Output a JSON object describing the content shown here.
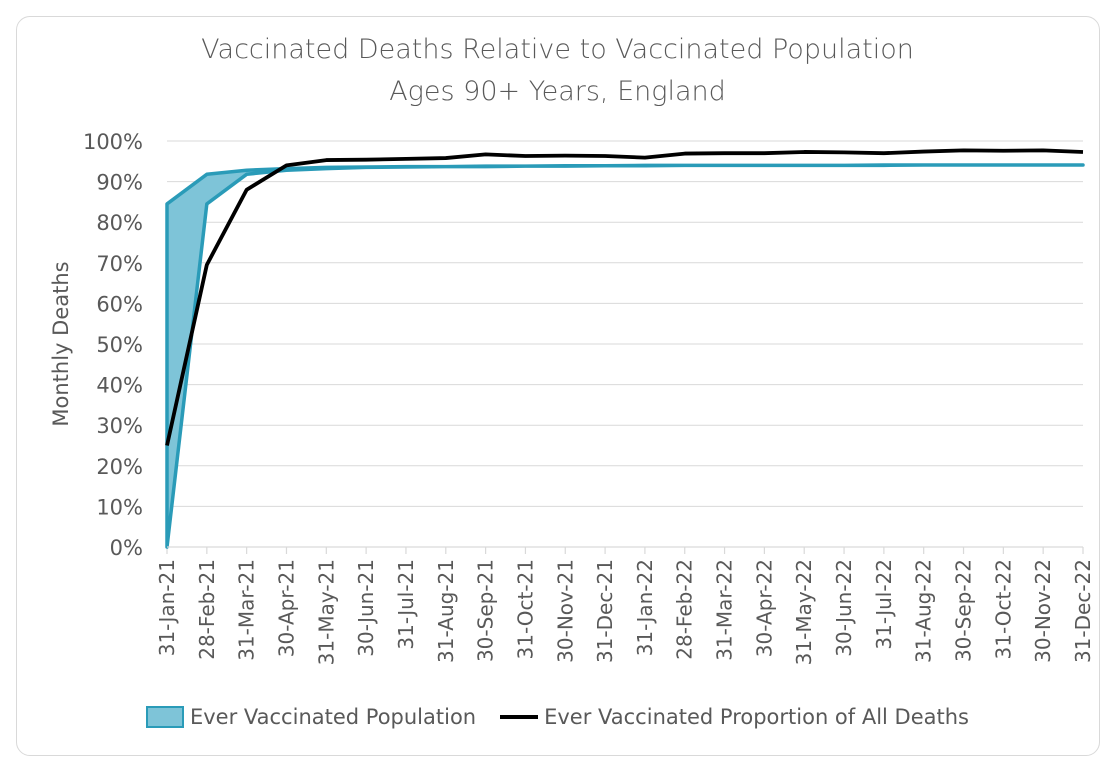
{
  "chart_data": {
    "type": "area",
    "title": "Vaccinated Deaths Relative to Vaccinated Population",
    "subtitle": "Ages 90+ Years, England",
    "ylabel": "Monthly Deaths",
    "xlabel": "",
    "ylim": [
      0,
      100
    ],
    "y_ticks": [
      "0%",
      "10%",
      "20%",
      "30%",
      "40%",
      "50%",
      "60%",
      "70%",
      "80%",
      "90%",
      "100%"
    ],
    "grid": "horizontal",
    "legend_position": "bottom",
    "categories": [
      "31-Jan-21",
      "28-Feb-21",
      "31-Mar-21",
      "30-Apr-21",
      "31-May-21",
      "30-Jun-21",
      "31-Jul-21",
      "31-Aug-21",
      "30-Sep-21",
      "31-Oct-21",
      "30-Nov-21",
      "31-Dec-21",
      "31-Jan-22",
      "28-Feb-22",
      "31-Mar-22",
      "30-Apr-22",
      "31-May-22",
      "30-Jun-22",
      "31-Jul-22",
      "31-Aug-22",
      "30-Sep-22",
      "31-Oct-22",
      "30-Nov-22",
      "31-Dec-22"
    ],
    "series": [
      {
        "name": "Ever Vaccinated Population",
        "kind": "band",
        "upper": [
          84.5,
          91.8,
          92.8,
          93.2,
          93.5,
          93.6,
          93.7,
          93.7,
          93.8,
          93.8,
          93.9,
          93.9,
          94.0,
          94.0,
          94.0,
          94.0,
          94.0,
          94.0,
          94.1,
          94.1,
          94.1,
          94.1,
          94.1,
          94.1
        ],
        "lower": [
          0,
          84.5,
          91.8,
          92.8,
          93.2,
          93.5,
          93.6,
          93.7,
          93.7,
          93.8,
          93.8,
          93.9,
          93.9,
          94.0,
          94.0,
          94.0,
          94.0,
          94.0,
          94.0,
          94.1,
          94.1,
          94.1,
          94.1,
          94.1
        ],
        "fill": "#7ec4d8",
        "stroke": "#2a9bb8"
      },
      {
        "name": "Ever Vaccinated Proportion of All Deaths",
        "kind": "line",
        "values": [
          25.0,
          69.5,
          88.0,
          94.0,
          95.3,
          95.4,
          95.6,
          95.8,
          96.7,
          96.3,
          96.4,
          96.3,
          95.9,
          96.9,
          97.0,
          97.0,
          97.3,
          97.2,
          97.0,
          97.4,
          97.7,
          97.6,
          97.7,
          97.3
        ],
        "stroke": "#000000"
      }
    ]
  }
}
